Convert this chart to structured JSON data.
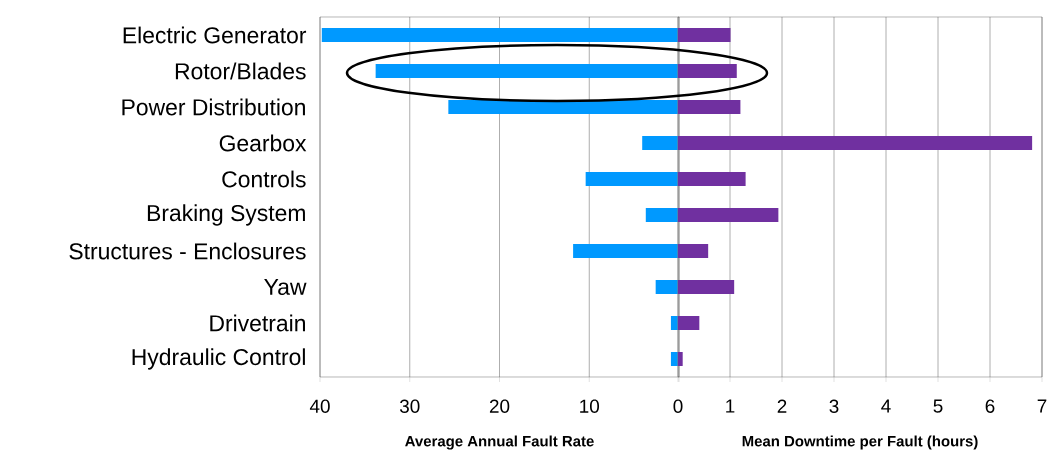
{
  "chart_data": [
    {
      "type": "bar",
      "orientation": "horizontal",
      "xlabel": "Average Annual Fault Rate",
      "categories": [
        "Electric Generator",
        "Rotor/Blades",
        "Power Distribution",
        "Gearbox",
        "Controls",
        "Braking System",
        "Structures - Enclosures",
        "Yaw",
        "Drivetrain",
        "Hydraulic Control"
      ],
      "values": [
        39.8,
        33.8,
        25.7,
        4.1,
        10.4,
        3.7,
        11.8,
        2.6,
        0.9,
        0.9
      ],
      "color": "#0099ff",
      "xlim": [
        40,
        0
      ],
      "xticks": [
        40,
        30,
        20,
        10,
        {
          "value": 0,
          "label": null
        }
      ],
      "grid": "x"
    },
    {
      "type": "bar",
      "orientation": "horizontal",
      "xlabel": "Mean Downtime per Fault (hours)",
      "categories": [
        null,
        null,
        null,
        null,
        null,
        null,
        null,
        null,
        null,
        null
      ],
      "values": [
        1.01,
        1.13,
        1.2,
        6.81,
        1.3,
        1.93,
        0.58,
        1.08,
        0.41,
        0.09
      ],
      "color": "#7030a0",
      "xlim": [
        0,
        7
      ],
      "xticks": [
        0,
        1,
        2,
        3,
        4,
        5,
        6,
        7
      ],
      "grid": "x",
      "tick_labels": "x"
    }
  ]
}
